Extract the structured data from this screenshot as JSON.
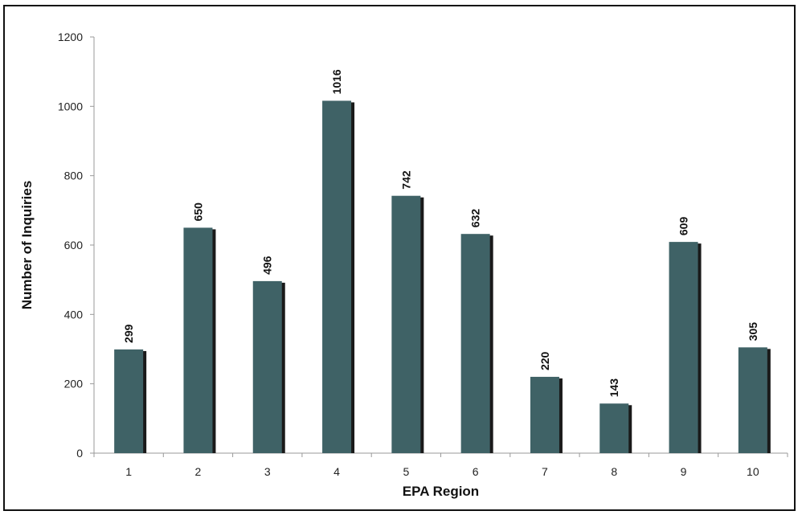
{
  "chart_data": {
    "type": "bar",
    "categories": [
      "1",
      "2",
      "3",
      "4",
      "5",
      "6",
      "7",
      "8",
      "9",
      "10"
    ],
    "values": [
      299,
      650,
      496,
      1016,
      742,
      632,
      220,
      143,
      609,
      305
    ],
    "data_labels": [
      "299",
      "650",
      "496",
      "1016",
      "742",
      "632",
      "220",
      "143",
      "609",
      "305"
    ],
    "xlabel": "EPA Region",
    "ylabel": "Number of Inquiries",
    "ylim": [
      0,
      1200
    ],
    "yticks": [
      0,
      200,
      400,
      600,
      800,
      1000,
      1200
    ],
    "grid": false,
    "bar_color": "#3f6266",
    "bar_shadow_color": "#1a1a1a"
  }
}
